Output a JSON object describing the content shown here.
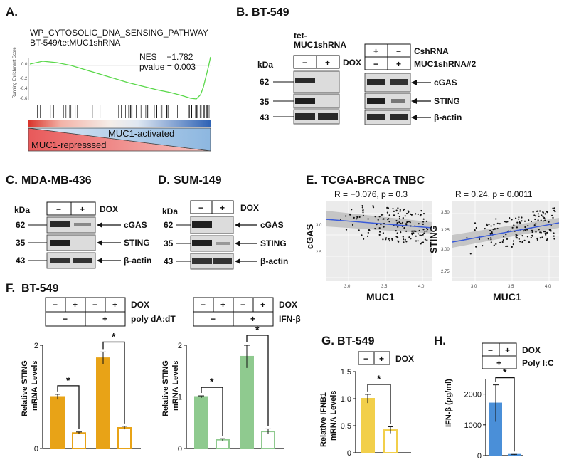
{
  "panels": {
    "A": "A.",
    "B": "B.",
    "C": "C.",
    "D": "D.",
    "E": "E.",
    "F": "F.",
    "G": "G.",
    "H": "H."
  },
  "gsea": {
    "gene_set": "WP_CYTOSOLIC_DNA_SENSING_PATHWAY",
    "comparison": "BT-549/tetMUC1shRNA",
    "nes": "NES = −1.782",
    "pvalue": "pvalue = 0.003",
    "ylabel": "Running Enrichment Score",
    "activated": "MUC1-activated",
    "repressed": "MUC1-represssed",
    "curve_color": "#5ad84a"
  },
  "blots": {
    "kda": "kDa",
    "minus": "−",
    "plus": "+",
    "dox": "DOX",
    "cgas": "cGAS",
    "sting": "STING",
    "actin": "β-actin",
    "mw": [
      "62",
      "35",
      "43"
    ],
    "B": {
      "title": "BT-549",
      "tet": "tet-",
      "tet2": "MUC1shRNA",
      "cshrna": "CshRNA",
      "muc1sh": "MUC1shRNA#2"
    },
    "C": {
      "title": "MDA-MB-436"
    },
    "D": {
      "title": "SUM-149"
    }
  },
  "scatter": {
    "title": "TCGA-BRCA TNBC",
    "left": {
      "stat": "R = −0.076, p = 0.3",
      "ylabel": "cGAS",
      "xlabel": "MUC1",
      "xticks": [
        "3.0",
        "3.5",
        "4.0"
      ],
      "yticks": [
        "2.5",
        "3.0"
      ]
    },
    "right": {
      "stat": "R = 0.24, p = 0.0011",
      "ylabel": "STING",
      "xlabel": "MUC1",
      "xticks": [
        "3.0",
        "3.5",
        "4.0"
      ],
      "yticks": [
        "2.75",
        "3.00",
        "3.25",
        "3.50"
      ]
    }
  },
  "F": {
    "title": "BT-549",
    "dox": "DOX",
    "treat1": "poly dA:dT",
    "treat2": "IFN-β",
    "ylabel1": "Relative STING",
    "ylabel2": "mRNA Levels",
    "star": "*",
    "orange": "#e8a317",
    "green": "#8fca8f"
  },
  "G": {
    "title": "BT-549",
    "dox": "DOX",
    "ylabel1": "Relative IFNB1",
    "ylabel2": "mRNA Levels",
    "star": "*",
    "color": "#f2cf4a"
  },
  "H": {
    "dox": "DOX",
    "treat": "Poly I:C",
    "ylabel": "IFN-β (pg/ml)",
    "star": "*",
    "color": "#4a8fd8"
  },
  "chart_data": [
    {
      "type": "bar",
      "panel": "F-left",
      "categories": [
        "DOX− / poly dA:dT−",
        "DOX+ / poly dA:dT−",
        "DOX− / poly dA:dT+",
        "DOX+ / poly dA:dT+"
      ],
      "values": [
        1.0,
        0.3,
        1.75,
        0.4
      ],
      "errors": [
        0.05,
        0.02,
        0.12,
        0.03
      ],
      "ylabel": "Relative STING mRNA Levels",
      "ylim": [
        0,
        2
      ],
      "yticks": [
        "0",
        "1",
        "2"
      ]
    },
    {
      "type": "bar",
      "panel": "F-right",
      "categories": [
        "DOX− / IFN-β−",
        "DOX+ / IFN-β−",
        "DOX− / IFN-β+",
        "DOX+ / IFN-β+"
      ],
      "values": [
        1.0,
        0.17,
        1.78,
        0.33
      ],
      "errors": [
        0.02,
        0.02,
        0.22,
        0.05
      ],
      "ylabel": "Relative STING mRNA Levels",
      "ylim": [
        0,
        2
      ],
      "yticks": [
        "0",
        "1",
        "2"
      ]
    },
    {
      "type": "bar",
      "panel": "G",
      "categories": [
        "DOX−",
        "DOX+"
      ],
      "values": [
        1.0,
        0.42
      ],
      "errors": [
        0.08,
        0.06
      ],
      "ylabel": "Relative IFNB1 mRNA Levels",
      "ylim": [
        0,
        1.5
      ],
      "yticks": [
        "0",
        "0.5",
        "1.0",
        "1.5"
      ]
    },
    {
      "type": "bar",
      "panel": "H",
      "categories": [
        "DOX−",
        "DOX+"
      ],
      "values": [
        1700,
        30
      ],
      "errors": [
        600,
        10
      ],
      "ylabel": "IFN-β (pg/ml)",
      "ylim": [
        0,
        2500
      ],
      "yticks": [
        "0",
        "1000",
        "2000"
      ]
    }
  ]
}
